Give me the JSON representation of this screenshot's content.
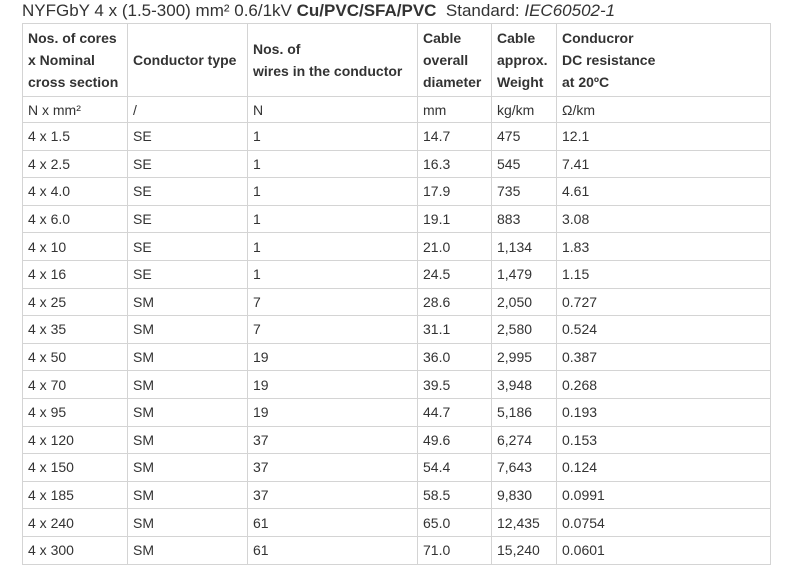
{
  "title": {
    "name": "NYFGbY 4 x (1.5-300) mm² 0.6/1kV",
    "material": "Cu/PVC/SFA/PVC",
    "standard_label": "Standard:",
    "standard": "IEC60502-1"
  },
  "table": {
    "header": [
      [
        "Nos. of cores",
        "x Nominal",
        "cross section"
      ],
      [
        "Conductor type"
      ],
      [
        "Nos. of",
        "wires in the conductor"
      ],
      [
        "Cable",
        "overall",
        "diameter"
      ],
      [
        "Cable",
        "approx.",
        "Weight"
      ],
      [
        "Conducror",
        "DC resistance",
        "at 20ºC"
      ]
    ],
    "units": [
      "N x mm²",
      "/",
      "N",
      "mm",
      "kg/km",
      "Ω/km"
    ],
    "rows": [
      [
        "4 x 1.5",
        "SE",
        "1",
        "14.7",
        "475",
        "12.1"
      ],
      [
        "4 x 2.5",
        "SE",
        "1",
        "16.3",
        "545",
        "7.41"
      ],
      [
        "4 x 4.0",
        "SE",
        "1",
        "17.9",
        "735",
        "4.61"
      ],
      [
        "4 x 6.0",
        "SE",
        "1",
        "19.1",
        "883",
        "3.08"
      ],
      [
        "4 x 10",
        "SE",
        "1",
        "21.0",
        "1,134",
        "1.83"
      ],
      [
        "4 x 16",
        "SE",
        "1",
        "24.5",
        "1,479",
        "1.15"
      ],
      [
        "4 x 25",
        "SM",
        "7",
        "28.6",
        "2,050",
        "0.727"
      ],
      [
        "4 x 35",
        "SM",
        "7",
        "31.1",
        "2,580",
        "0.524"
      ],
      [
        "4 x 50",
        "SM",
        "19",
        "36.0",
        "2,995",
        "0.387"
      ],
      [
        "4 x 70",
        "SM",
        "19",
        "39.5",
        "3,948",
        "0.268"
      ],
      [
        "4 x 95",
        "SM",
        "19",
        "44.7",
        "5,186",
        "0.193"
      ],
      [
        "4 x 120",
        "SM",
        "37",
        "49.6",
        "6,274",
        "0.153"
      ],
      [
        "4 x 150",
        "SM",
        "37",
        "54.4",
        "7,643",
        "0.124"
      ],
      [
        "4 x 185",
        "SM",
        "37",
        "58.5",
        "9,830",
        "0.0991"
      ],
      [
        "4 x 240",
        "SM",
        "61",
        "65.0",
        "12,435",
        "0.0754"
      ],
      [
        "4 x 300",
        "SM",
        "61",
        "71.0",
        "15,240",
        "0.0601"
      ]
    ]
  }
}
